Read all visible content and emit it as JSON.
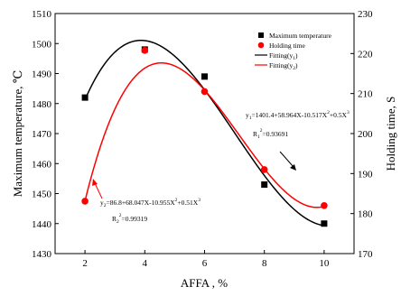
{
  "chart_data": {
    "type": "scatter",
    "title": "",
    "xlabel": "AFFA , %",
    "ylabel_left": "Maximum temperature, ℃",
    "ylabel_right": "Holding time, S",
    "xlim": [
      1,
      11
    ],
    "ylim_left": [
      1430,
      1510
    ],
    "ylim_right": [
      170,
      230
    ],
    "x_ticks": [
      "2",
      "4",
      "6",
      "8",
      "10"
    ],
    "y_left_ticks": [
      "1430",
      "1440",
      "1450",
      "1460",
      "1470",
      "1480",
      "1490",
      "1500",
      "1510"
    ],
    "y_right_ticks": [
      "170",
      "180",
      "190",
      "200",
      "210",
      "220",
      "230"
    ],
    "grid": false,
    "legend_position": "top-right",
    "legend": [
      {
        "label": "Maximum temperature",
        "marker": "square",
        "color": "#000000"
      },
      {
        "label": "Holding time",
        "marker": "circle",
        "color": "#ff0000"
      },
      {
        "label_main": "Fitting(y",
        "label_sub": "1",
        "label_end": ")",
        "line": true,
        "color": "#000000"
      },
      {
        "label_main": "Fitting(y",
        "label_sub": "2",
        "label_end": ")",
        "line": true,
        "color": "#ff0000"
      }
    ],
    "series": [
      {
        "name": "Maximum temperature",
        "axis": "left",
        "marker": "square",
        "color": "#000000",
        "x": [
          2,
          4,
          6,
          8,
          10
        ],
        "y": [
          1482,
          1498,
          1489,
          1453,
          1440
        ]
      },
      {
        "name": "Holding time",
        "axis": "right",
        "marker": "circle",
        "color": "#ff0000",
        "x": [
          2,
          4,
          6,
          8,
          10
        ],
        "y": [
          183.1,
          220.8,
          210.5,
          191,
          182
        ]
      },
      {
        "name": "Fitting(y1)",
        "axis": "left",
        "type": "line",
        "color": "#000000",
        "coefficients": [
          1401.4,
          58.964,
          -10.517,
          0.5
        ]
      },
      {
        "name": "Fitting(y2)",
        "axis": "right",
        "type": "line",
        "color": "#ff0000",
        "coefficients": [
          86.8,
          68.047,
          -10.955,
          0.51
        ]
      }
    ],
    "annotations": {
      "eq1": "y",
      "eq1_sub": "1",
      "eq1_rest": "=1401.4+58.964X-10.517X",
      "eq1_sup": "2",
      "eq1_tail": "+0.5X",
      "eq1_sup2": "3",
      "r1": "R",
      "r1_sub": "1",
      "r1_sup": "2",
      "r1_val": "=0.93691",
      "eq2": "y",
      "eq2_sub": "2",
      "eq2_rest": "=86.8+68.047X-10.955X",
      "eq2_sup": "2",
      "eq2_tail": "+0.51X",
      "eq2_sup2": "3",
      "r2": "R",
      "r2_sub": "2",
      "r2_sup": "2",
      "r2_val": "=0.99319"
    }
  }
}
